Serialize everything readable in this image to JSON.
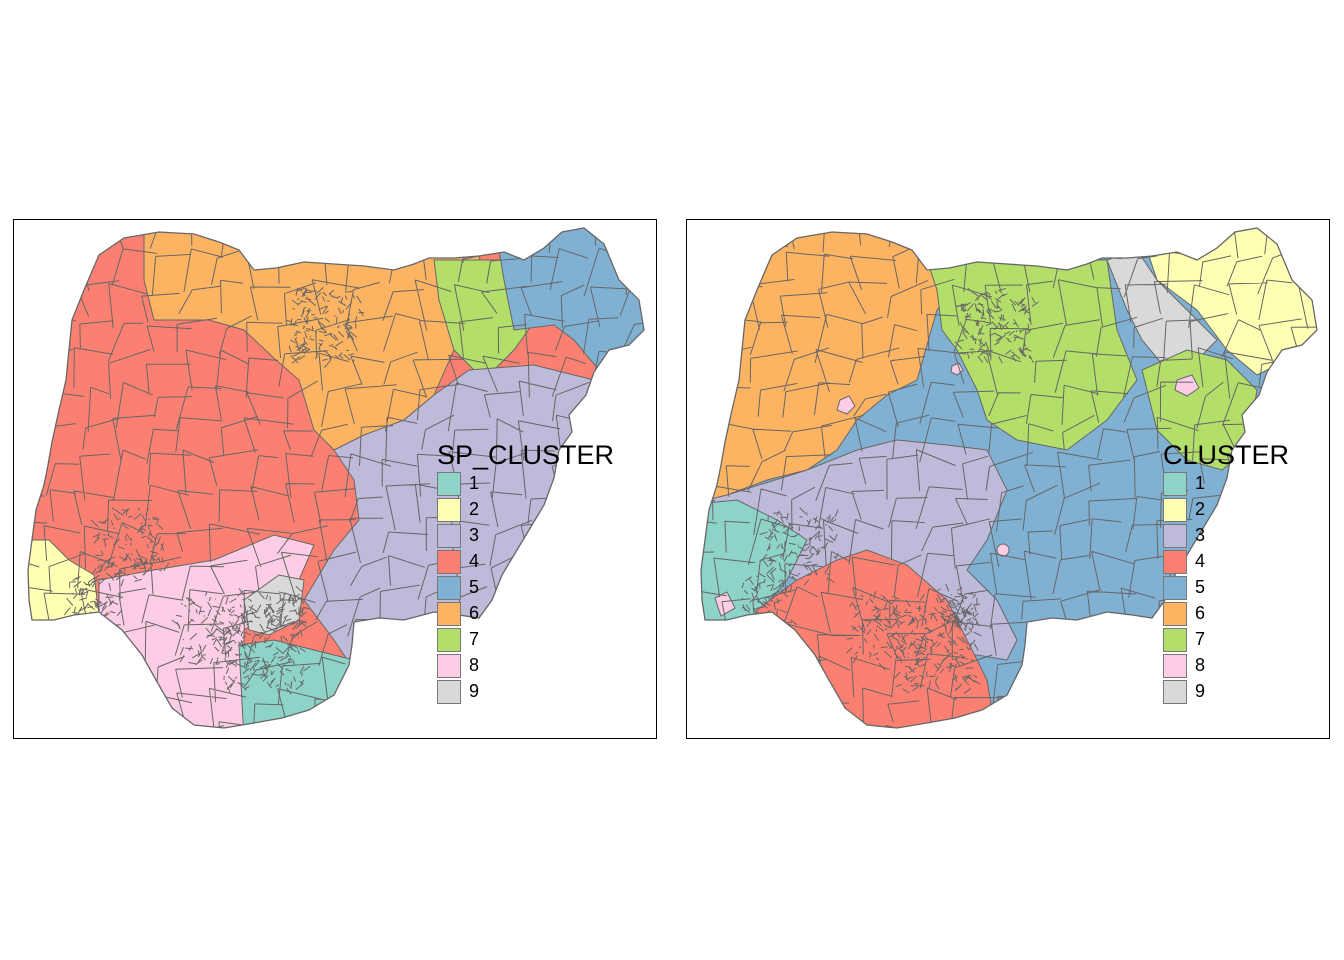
{
  "maps": [
    {
      "id": "left",
      "legend_title": "SP_CLUSTER",
      "regions": [
        {
          "cluster": 4,
          "area": "northwest and west-central"
        },
        {
          "cluster": 6,
          "area": "north-central band"
        },
        {
          "cluster": 7,
          "area": "northeast west portion"
        },
        {
          "cluster": 5,
          "area": "far northeast"
        },
        {
          "cluster": 3,
          "area": "east and southeast"
        },
        {
          "cluster": 2,
          "area": "southwest corner"
        },
        {
          "cluster": 8,
          "area": "south"
        },
        {
          "cluster": 9,
          "area": "south-central small"
        },
        {
          "cluster": 1,
          "area": "south-southeast coast"
        }
      ]
    },
    {
      "id": "right",
      "legend_title": "CLUSTER",
      "regions": [
        {
          "cluster": 6,
          "area": "northwest"
        },
        {
          "cluster": 7,
          "area": "north-central"
        },
        {
          "cluster": 9,
          "area": "northeast patch"
        },
        {
          "cluster": 2,
          "area": "far northeast"
        },
        {
          "cluster": 5,
          "area": "central and east"
        },
        {
          "cluster": 3,
          "area": "west-central"
        },
        {
          "cluster": 1,
          "area": "southwest scattered"
        },
        {
          "cluster": 4,
          "area": "south"
        },
        {
          "cluster": 8,
          "area": "scattered small areas"
        }
      ]
    }
  ],
  "legend": [
    {
      "label": "1",
      "color": "#8DD3C7"
    },
    {
      "label": "2",
      "color": "#FFFFB3"
    },
    {
      "label": "3",
      "color": "#BEBADA"
    },
    {
      "label": "4",
      "color": "#FB8072"
    },
    {
      "label": "5",
      "color": "#80B1D3"
    },
    {
      "label": "6",
      "color": "#FDB462"
    },
    {
      "label": "7",
      "color": "#B3DE69"
    },
    {
      "label": "8",
      "color": "#FCCDE5"
    },
    {
      "label": "9",
      "color": "#D9D9D9"
    }
  ],
  "border_color": "#666666"
}
